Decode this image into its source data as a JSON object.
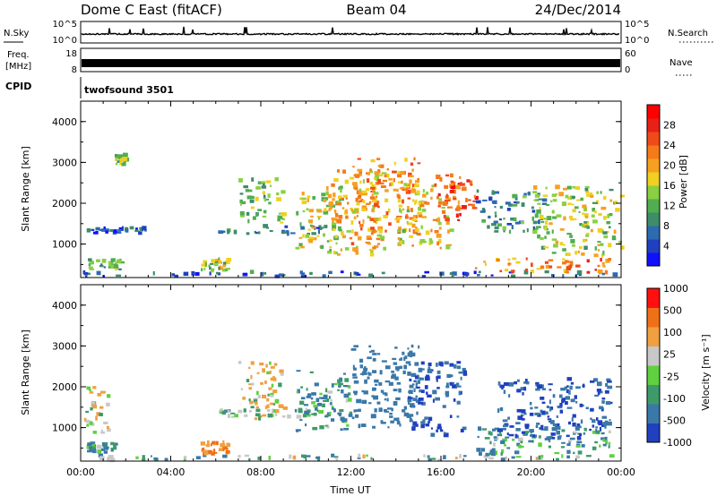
{
  "header": {
    "station": "Dome C East (fitACF)",
    "beam": "Beam 04",
    "date": "24/Dec/2014"
  },
  "strip_labels": {
    "nsky": "N.Sky",
    "nsky_ticks": [
      "10^5",
      "10^0"
    ],
    "nsearch": "N.Search",
    "nsearch_ticks": [
      "10^5",
      "10^0"
    ],
    "freq": "Freq.",
    "freq_unit": "[MHz]",
    "freq_ticks": [
      "18",
      "8"
    ],
    "nave": "Nave",
    "nave_ticks": [
      "60",
      "0"
    ],
    "cpid": "CPID",
    "cpid_value": "twofsound 3501"
  },
  "chart_data": [
    {
      "type": "heatmap",
      "name": "power",
      "ylabel": "Slant Range [km]",
      "ylim": [
        180,
        4500
      ],
      "yticks": [
        "1000",
        "2000",
        "3000",
        "4000"
      ],
      "xticks": [
        "00:00",
        "04:00",
        "08:00",
        "12:00",
        "16:00",
        "20:00",
        "00:00"
      ],
      "xlim_hours": [
        0,
        24
      ],
      "colorbar": {
        "label": "Power [dB]",
        "ticks": [
          "4",
          "8",
          "12",
          "16",
          "20",
          "24",
          "28"
        ],
        "colors": [
          "#1010ff",
          "#2040c0",
          "#2e6ab0",
          "#3e8c6a",
          "#4fae4f",
          "#8ad040",
          "#f0d020",
          "#f7a020",
          "#f57a1a",
          "#f04a1a",
          "#e82018",
          "#ff0000"
        ]
      },
      "echo_regions": [
        {
          "t": [
            0.1,
            23.9
          ],
          "r": [
            200,
            320
          ],
          "v": 6
        },
        {
          "t": [
            0.3,
            1.8
          ],
          "r": [
            380,
            620
          ],
          "v": 12
        },
        {
          "t": [
            0.2,
            3.0
          ],
          "r": [
            1250,
            1400
          ],
          "v": 6
        },
        {
          "t": [
            1.5,
            2.0
          ],
          "r": [
            2950,
            3200
          ],
          "v": 14
        },
        {
          "t": [
            5.3,
            6.5
          ],
          "r": [
            350,
            650
          ],
          "v": 15
        },
        {
          "t": [
            6.0,
            11.0
          ],
          "r": [
            1250,
            1450
          ],
          "v": 7
        },
        {
          "t": [
            7.0,
            9.0
          ],
          "r": [
            1500,
            2600
          ],
          "v": 13
        },
        {
          "t": [
            9.5,
            11.5
          ],
          "r": [
            800,
            2400
          ],
          "v": 16
        },
        {
          "t": [
            11.0,
            13.5
          ],
          "r": [
            700,
            2800
          ],
          "v": 19
        },
        {
          "t": [
            12.0,
            15.0
          ],
          "r": [
            1300,
            3100
          ],
          "v": 21
        },
        {
          "t": [
            14.0,
            16.5
          ],
          "r": [
            900,
            2500
          ],
          "v": 18
        },
        {
          "t": [
            15.5,
            17.5
          ],
          "r": [
            1500,
            2700
          ],
          "v": 24
        },
        {
          "t": [
            17.5,
            23.5
          ],
          "r": [
            300,
            650
          ],
          "v": 22
        },
        {
          "t": [
            17.5,
            20.5
          ],
          "r": [
            1300,
            2300
          ],
          "v": 9
        },
        {
          "t": [
            20.0,
            24.0
          ],
          "r": [
            700,
            2400
          ],
          "v": 15
        }
      ]
    },
    {
      "type": "heatmap",
      "name": "velocity",
      "ylabel": "Slant Range [km]",
      "ylim": [
        180,
        4500
      ],
      "yticks": [
        "1000",
        "2000",
        "3000",
        "4000"
      ],
      "xticks": [
        "00:00",
        "04:00",
        "08:00",
        "12:00",
        "16:00",
        "20:00",
        "00:00"
      ],
      "xlim_hours": [
        0,
        24
      ],
      "xlabel": "Time UT",
      "colorbar": {
        "label": "Velocity [m s⁻¹]",
        "ticks": [
          "1000",
          "500",
          "100",
          "25",
          "-25",
          "-100",
          "-500",
          "-1000"
        ],
        "colors": [
          "#2040c0",
          "#3a78a8",
          "#3e9a6a",
          "#5fd040",
          "#c8c8c8",
          "#f0a040",
          "#f07018",
          "#ff1010"
        ]
      },
      "echo_regions": [
        {
          "t": [
            0.1,
            23.9
          ],
          "r": [
            200,
            320
          ],
          "v": 25
        },
        {
          "t": [
            0.2,
            1.5
          ],
          "r": [
            380,
            620
          ],
          "v": 100
        },
        {
          "t": [
            0.1,
            1.2
          ],
          "r": [
            800,
            2000
          ],
          "v": -100
        },
        {
          "t": [
            5.3,
            6.5
          ],
          "r": [
            350,
            650
          ],
          "v": -500
        },
        {
          "t": [
            6.0,
            11.0
          ],
          "r": [
            1250,
            1450
          ],
          "v": 0
        },
        {
          "t": [
            7.0,
            9.0
          ],
          "r": [
            1200,
            2600
          ],
          "v": -100
        },
        {
          "t": [
            9.5,
            12.0
          ],
          "r": [
            900,
            2400
          ],
          "v": 100
        },
        {
          "t": [
            12.0,
            15.0
          ],
          "r": [
            1000,
            3000
          ],
          "v": 300
        },
        {
          "t": [
            14.5,
            17.0
          ],
          "r": [
            800,
            2600
          ],
          "v": 500
        },
        {
          "t": [
            17.5,
            23.5
          ],
          "r": [
            300,
            1000
          ],
          "v": 100
        },
        {
          "t": [
            18.5,
            23.5
          ],
          "r": [
            700,
            2200
          ],
          "v": 500
        }
      ]
    }
  ]
}
